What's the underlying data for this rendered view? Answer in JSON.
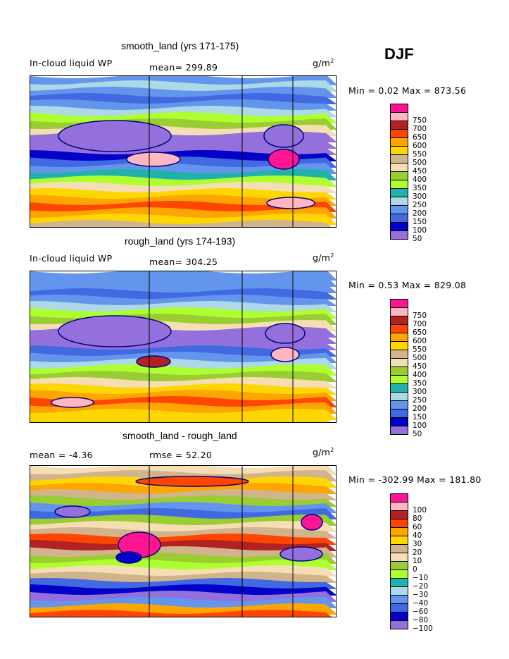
{
  "season": "DJF",
  "panels": [
    {
      "title": "smooth_land (yrs 171-175)",
      "left_label": "In-cloud liquid WP",
      "center_label": "mean= 299.89",
      "units": "g/m",
      "units_sup": "2",
      "minmax": "Min =   0.02 Max = 873.56"
    },
    {
      "title": "rough_land (yrs 174-193)",
      "left_label": "In-cloud liquid WP",
      "center_label": "mean= 304.25",
      "units": "g/m",
      "units_sup": "2",
      "minmax": "Min =   0.53 Max = 829.08"
    },
    {
      "title": "smooth_land - rough_land",
      "left_label": "mean =   -4.36",
      "center_label": "rmse =  52.20",
      "units": "g/m",
      "units_sup": "2",
      "minmax": "Min = -302.99 Max = 181.80"
    }
  ],
  "chart_data": [
    {
      "type": "heatmap",
      "title": "smooth_land (yrs 171-175)",
      "variable": "In-cloud liquid WP",
      "units": "g/m^2",
      "mean": 299.89,
      "min": 0.02,
      "max": 873.56,
      "levels": [
        50,
        100,
        150,
        200,
        250,
        300,
        350,
        400,
        450,
        500,
        550,
        600,
        650,
        700,
        750
      ],
      "colors": [
        "#9370db",
        "#0000c8",
        "#4169e1",
        "#6495ed",
        "#add8e6",
        "#20b2aa",
        "#adff2f",
        "#9acd32",
        "#f5deb3",
        "#d2b48c",
        "#ffd700",
        "#ffa500",
        "#ff4500",
        "#b22222",
        "#ffb6c1",
        "#ff1493"
      ]
    },
    {
      "type": "heatmap",
      "title": "rough_land (yrs 174-193)",
      "variable": "In-cloud liquid WP",
      "units": "g/m^2",
      "mean": 304.25,
      "min": 0.53,
      "max": 829.08,
      "levels": [
        50,
        100,
        150,
        200,
        250,
        300,
        350,
        400,
        450,
        500,
        550,
        600,
        650,
        700,
        750
      ],
      "colors": [
        "#9370db",
        "#0000c8",
        "#4169e1",
        "#6495ed",
        "#add8e6",
        "#20b2aa",
        "#adff2f",
        "#9acd32",
        "#f5deb3",
        "#d2b48c",
        "#ffd700",
        "#ffa500",
        "#ff4500",
        "#b22222",
        "#ffb6c1",
        "#ff1493"
      ]
    },
    {
      "type": "heatmap",
      "title": "smooth_land - rough_land",
      "units": "g/m^2",
      "mean": -4.36,
      "rmse": 52.2,
      "min": -302.99,
      "max": 181.8,
      "levels": [
        -100,
        -80,
        -60,
        -40,
        -30,
        -20,
        -10,
        0,
        10,
        20,
        30,
        40,
        60,
        80,
        100
      ],
      "colors": [
        "#9370db",
        "#0000c8",
        "#4169e1",
        "#6495ed",
        "#add8e6",
        "#20b2aa",
        "#adff2f",
        "#9acd32",
        "#f5deb3",
        "#d2b48c",
        "#ffd700",
        "#ffa500",
        "#ff4500",
        "#b22222",
        "#ffb6c1",
        "#ff1493"
      ]
    }
  ]
}
